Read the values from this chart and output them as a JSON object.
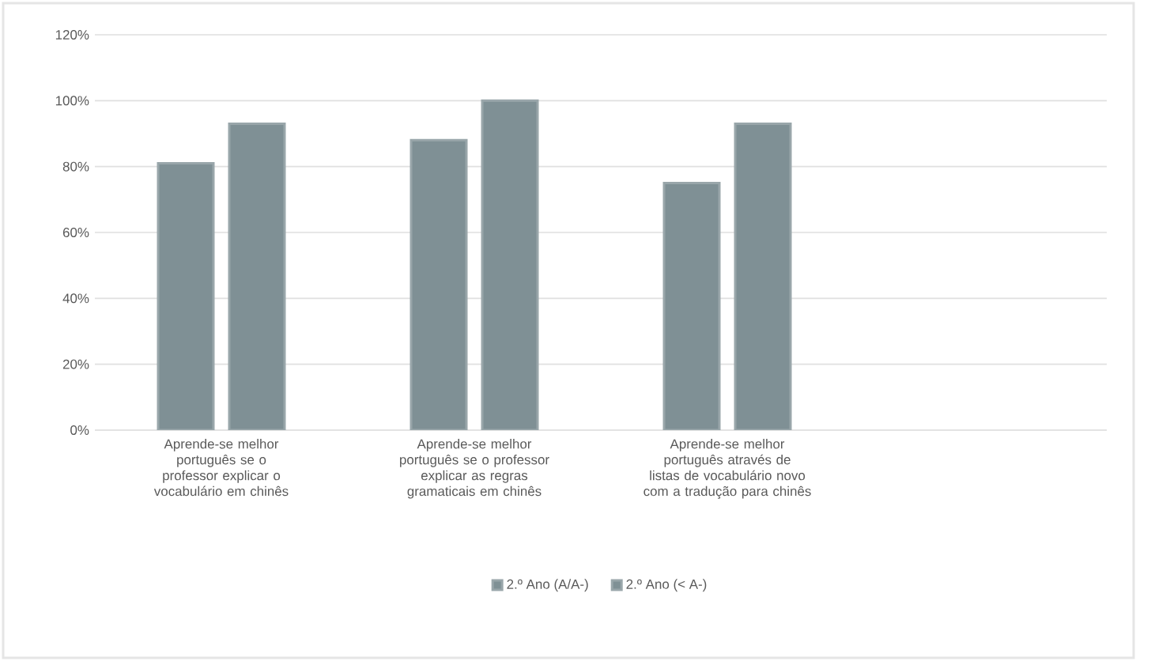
{
  "chart_data": {
    "type": "bar",
    "categories": [
      "Aprende-se melhor português se o professor explicar o vocabulário em chinês",
      "Aprende-se melhor português se o professor explicar as regras gramaticais em chinês",
      "Aprende-se melhor português através de listas de vocabulário novo com a tradução para chinês",
      null
    ],
    "series": [
      {
        "name": "2.º Ano (A/A-)",
        "color": "#7f9095",
        "values": [
          81,
          88,
          75,
          null
        ]
      },
      {
        "name": "2.º Ano (< A-)",
        "color": "#7f9095",
        "values": [
          93,
          100,
          93,
          null
        ]
      }
    ],
    "ylim": [
      0,
      120
    ],
    "yticks": [
      {
        "value": 0,
        "label": "0%"
      },
      {
        "value": 20,
        "label": "20%"
      },
      {
        "value": 40,
        "label": "40%"
      },
      {
        "value": 60,
        "label": "60%"
      },
      {
        "value": 80,
        "label": "80%"
      },
      {
        "value": 100,
        "label": "100%"
      },
      {
        "value": 120,
        "label": "120%"
      }
    ],
    "grid": "y",
    "legend": "bottom"
  }
}
